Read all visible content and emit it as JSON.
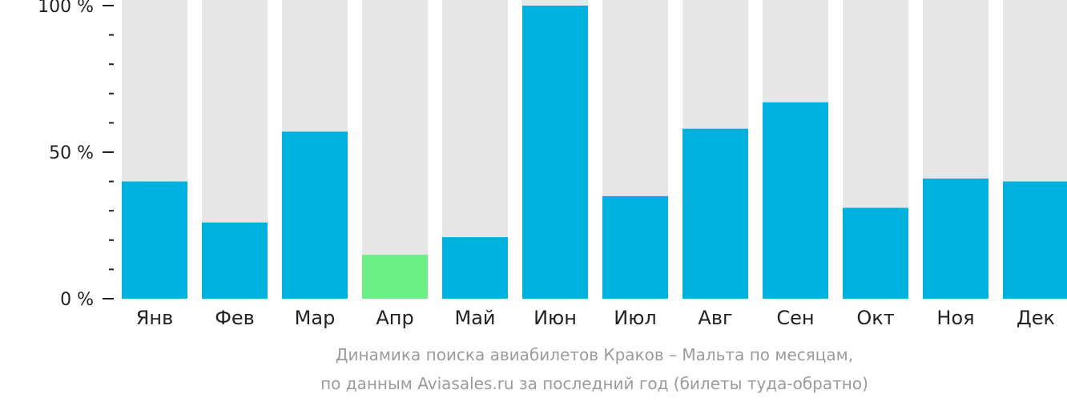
{
  "chart_data": {
    "type": "bar",
    "categories": [
      "Янв",
      "Фев",
      "Мар",
      "Апр",
      "Май",
      "Июн",
      "Июл",
      "Авг",
      "Сен",
      "Окт",
      "Ноя",
      "Дек"
    ],
    "values": [
      40,
      26,
      57,
      15,
      21,
      100,
      35,
      58,
      67,
      31,
      41,
      40
    ],
    "ylim": [
      0,
      100
    ],
    "yticks": [
      {
        "value": 0,
        "label": "0 %"
      },
      {
        "value": 50,
        "label": "50 %"
      },
      {
        "value": 100,
        "label": "100 %"
      }
    ],
    "minor_tick_step": 10,
    "highlight_index": 3,
    "colors": {
      "bar": "#00b0dd",
      "highlight": "#6cf085",
      "track": "#e7e7e8",
      "axis": "#222222",
      "caption": "#9b9b9b"
    }
  },
  "caption": {
    "line1": "Динамика поиска авиабилетов Краков – Мальта по месяцам,",
    "line2": "по данным Aviasales.ru за последний год (билеты туда-обратно)"
  }
}
